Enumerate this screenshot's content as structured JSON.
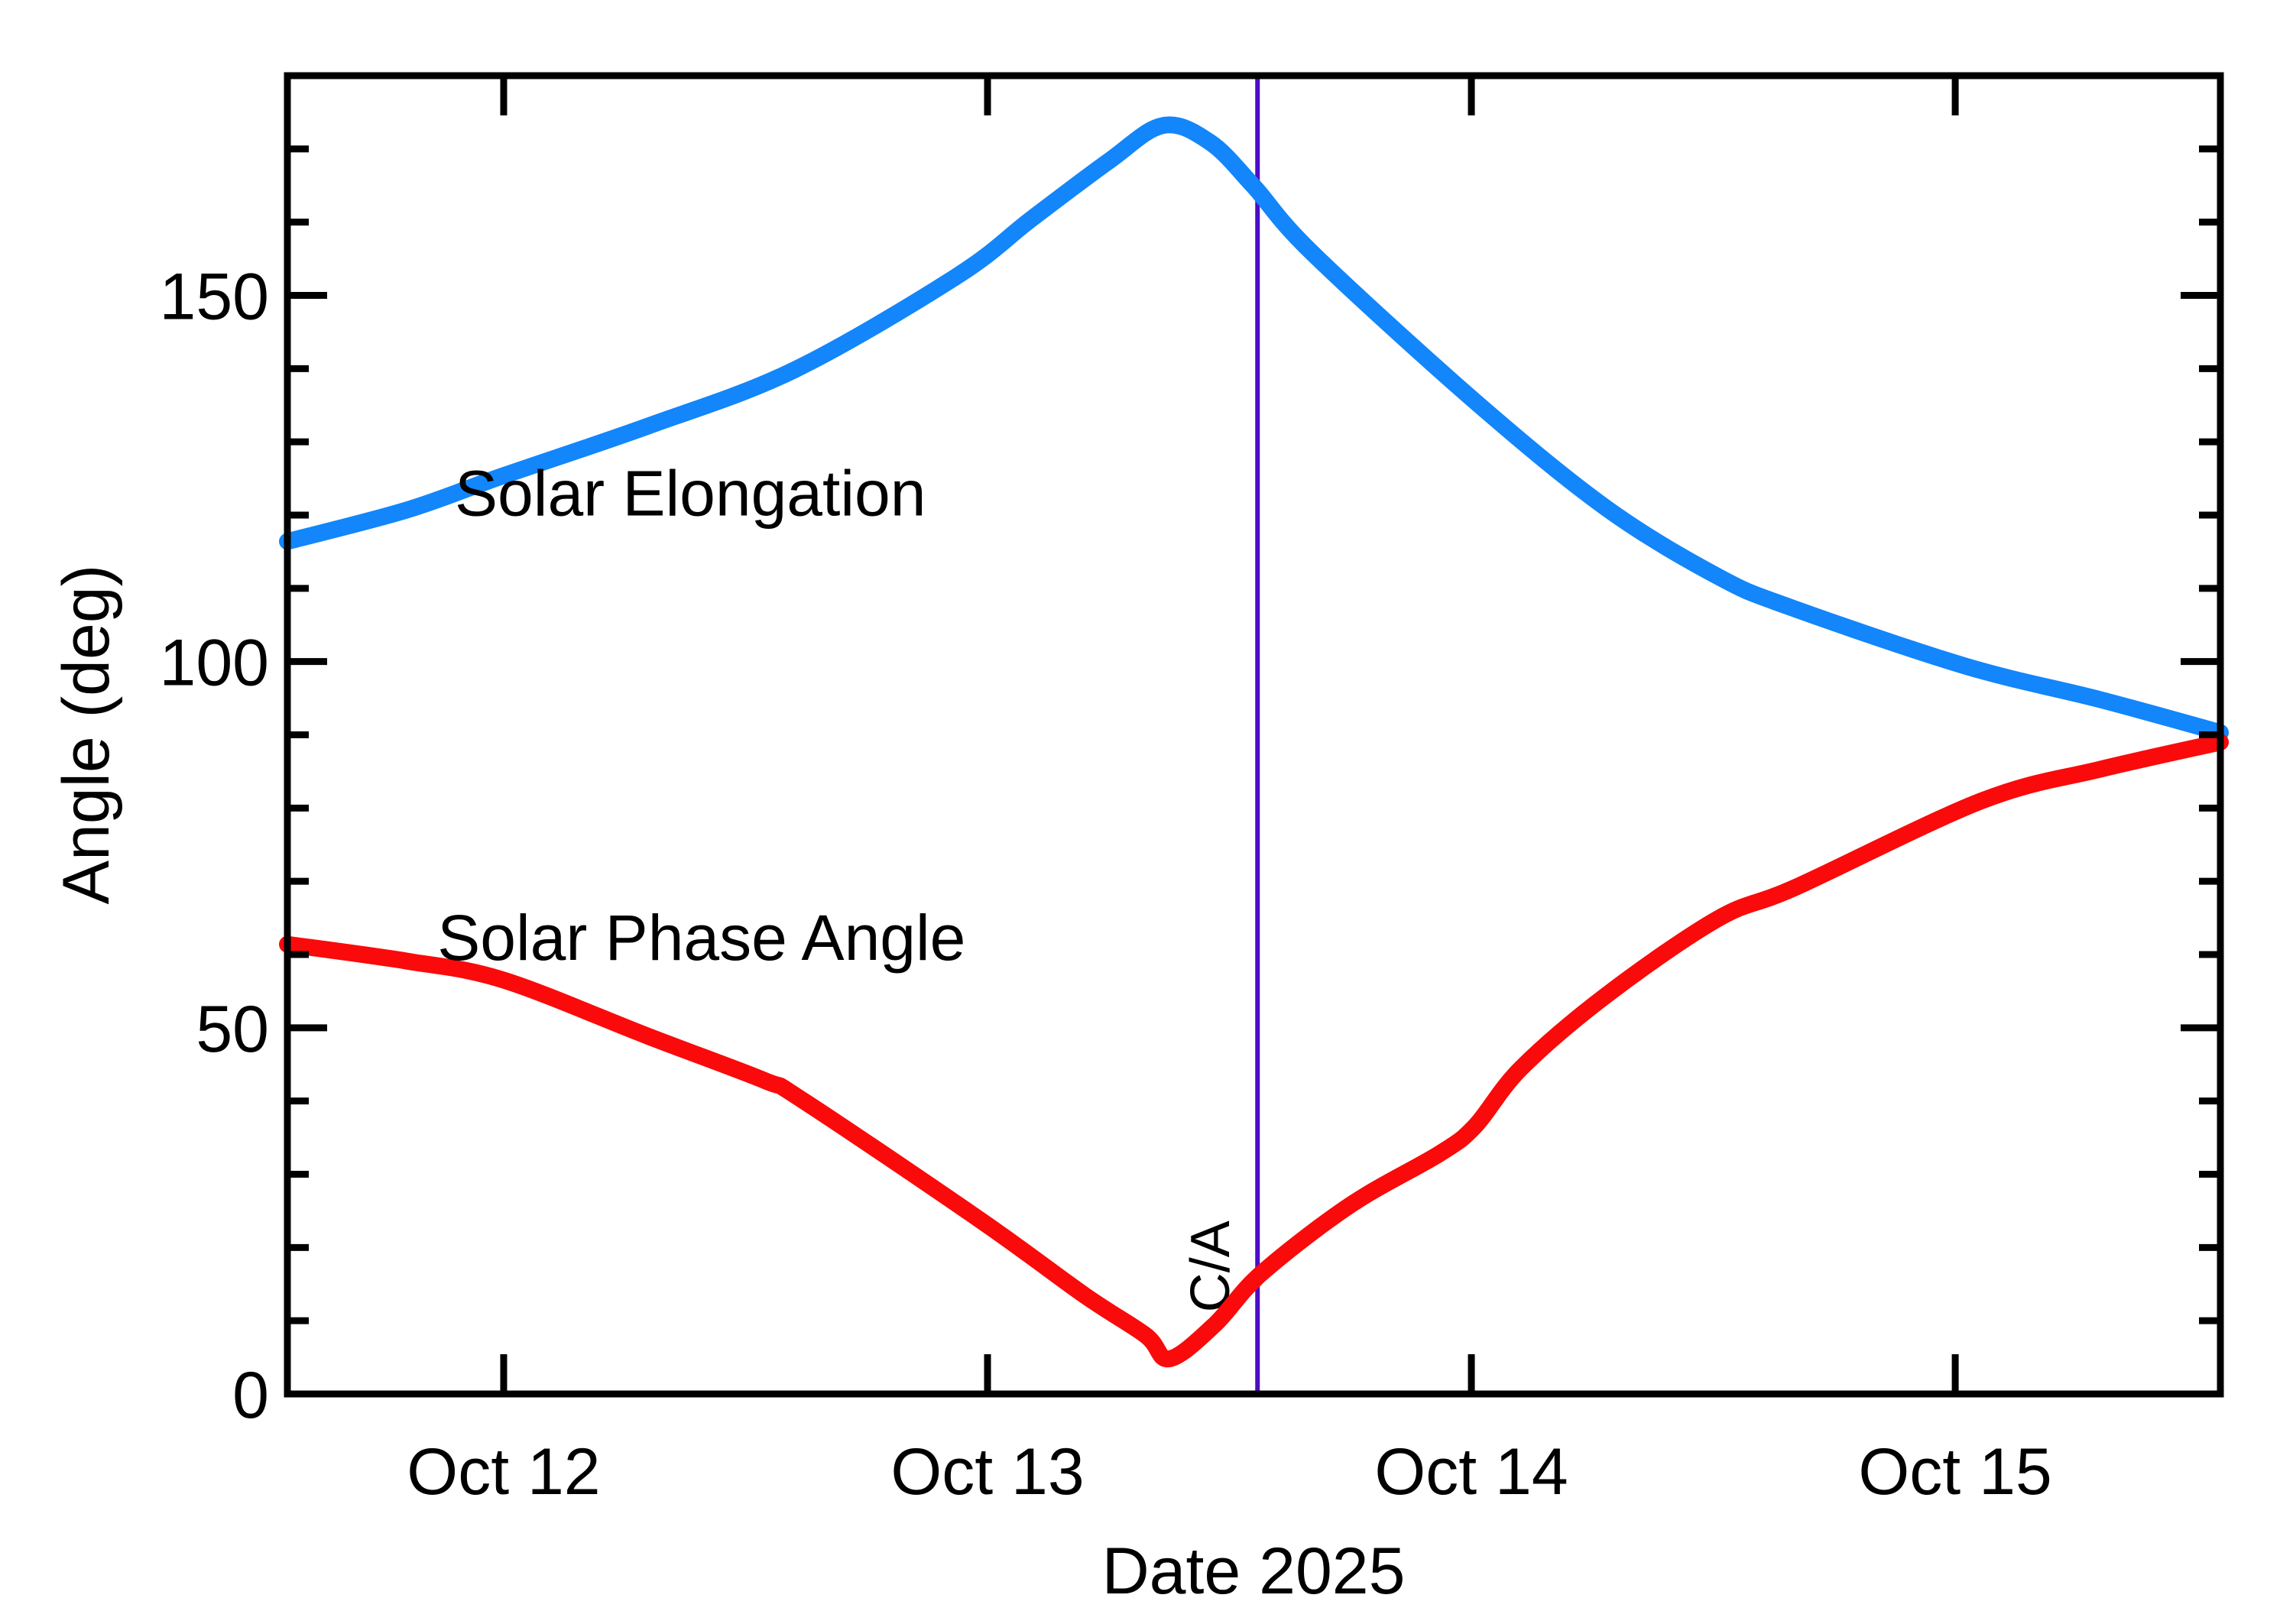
{
  "chart_data": {
    "type": "line",
    "title": "",
    "xlabel": "Date 2025",
    "ylabel": "Angle (deg)",
    "background": "#ffffff",
    "axis_color": "#000000",
    "x_unit": "days after Oct 12 00:00",
    "xlim_days_from_oct12": [
      -0.447,
      3.548
    ],
    "ylim": [
      0,
      180
    ],
    "grid": false,
    "x_major_ticks": [
      {
        "t": 0,
        "label": "Oct 12"
      },
      {
        "t": 1,
        "label": "Oct 13"
      },
      {
        "t": 2,
        "label": "Oct 14"
      },
      {
        "t": 3,
        "label": "Oct 15"
      }
    ],
    "y_major_ticks": [
      {
        "v": 0,
        "label": "0"
      },
      {
        "v": 50,
        "label": "50"
      },
      {
        "v": 100,
        "label": "100"
      },
      {
        "v": 150,
        "label": "150"
      }
    ],
    "y_minor_tick_step": 10,
    "series": [
      {
        "name": "Solar Elongation",
        "color": "#1286fa",
        "label_anchor": {
          "t": -0.101,
          "deg": 123.0,
          "align": "left"
        },
        "points": [
          [
            -0.447,
            116.4
          ],
          [
            -0.2,
            120.7
          ],
          [
            0.0,
            125.4
          ],
          [
            0.3,
            132.2
          ],
          [
            0.6,
            139.8
          ],
          [
            0.934,
            152.5
          ],
          [
            1.092,
            160.5
          ],
          [
            1.25,
            168.3
          ],
          [
            1.363,
            173.2
          ],
          [
            1.46,
            170.9
          ],
          [
            1.55,
            164.9
          ],
          [
            1.671,
            155.8
          ],
          [
            2.008,
            135.5
          ],
          [
            2.28,
            120.9
          ],
          [
            2.51,
            111.6
          ],
          [
            2.66,
            107.4
          ],
          [
            3.02,
            99.4
          ],
          [
            3.3,
            94.8
          ],
          [
            3.548,
            90.3
          ]
        ]
      },
      {
        "name": "Solar Phase Angle",
        "color": "#fa0a0a",
        "label_anchor": {
          "t": -0.137,
          "deg": 62.3,
          "align": "left"
        },
        "points": [
          [
            -0.447,
            61.4
          ],
          [
            -0.2,
            59.1
          ],
          [
            0.0,
            56.5
          ],
          [
            0.3,
            48.8
          ],
          [
            0.539,
            42.8
          ],
          [
            0.618,
            40.1
          ],
          [
            0.986,
            23.7
          ],
          [
            1.2,
            13.5
          ],
          [
            1.327,
            8.0
          ],
          [
            1.376,
            4.8
          ],
          [
            1.47,
            9.5
          ],
          [
            1.565,
            16.4
          ],
          [
            1.75,
            25.8
          ],
          [
            1.934,
            32.8
          ],
          [
            2.008,
            36.6
          ],
          [
            2.103,
            44.5
          ],
          [
            2.28,
            54.5
          ],
          [
            2.51,
            64.9
          ],
          [
            2.671,
            69.2
          ],
          [
            3.055,
            81.0
          ],
          [
            3.3,
            85.3
          ],
          [
            3.548,
            89.0
          ]
        ]
      }
    ],
    "annotations": [
      {
        "name": "closest-approach",
        "type": "vline",
        "t": 1.558,
        "color": "#4b0cc8",
        "label": "C/A",
        "label_anchor": {
          "t": 1.458,
          "deg": 17.4
        }
      }
    ]
  }
}
